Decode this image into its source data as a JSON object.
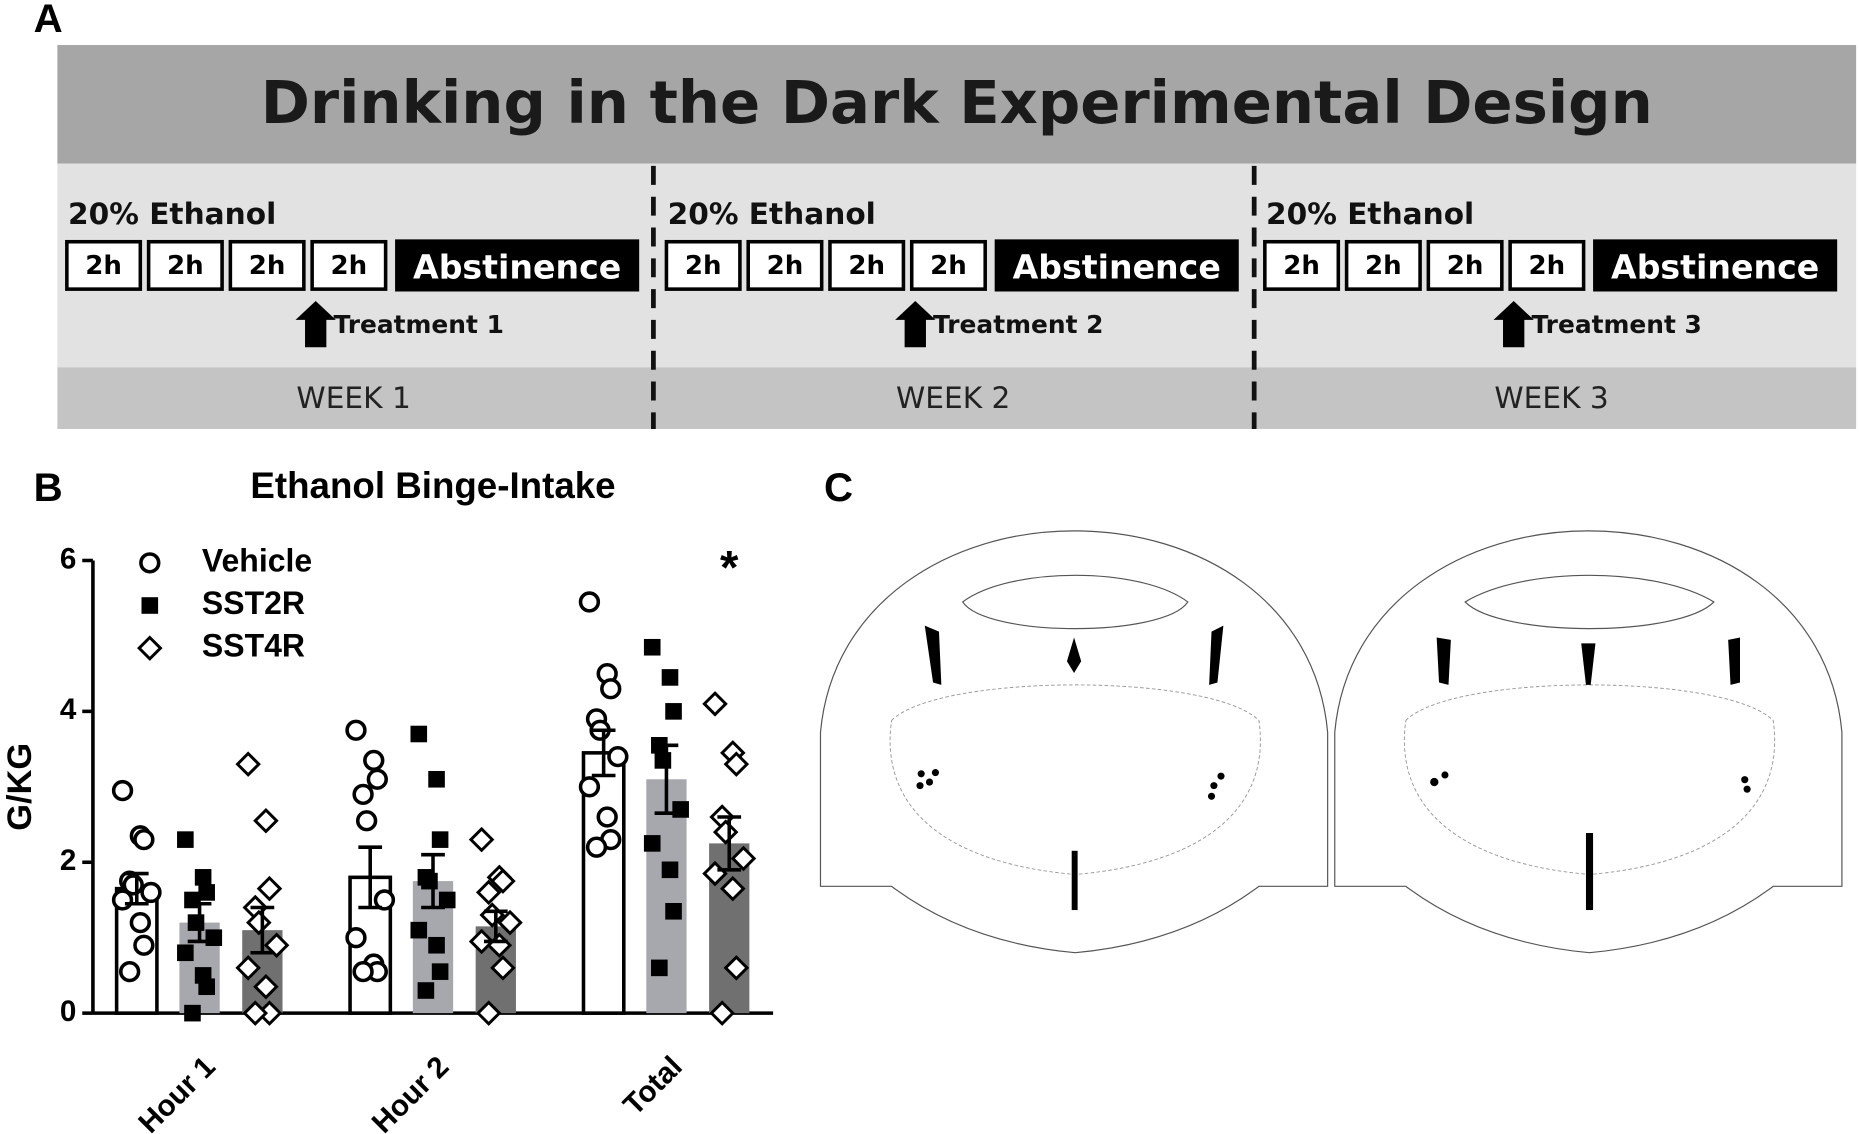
{
  "panel_labels": [
    "A",
    "B",
    "C"
  ],
  "design": {
    "title": "Drinking in the Dark Experimental Design",
    "weeks": [
      {
        "ethanol": "20% Ethanol",
        "sessions": [
          "2h",
          "2h",
          "2h",
          "2h"
        ],
        "abstinence": "Abstinence",
        "treatment": "Treatment 1",
        "week": "WEEK 1"
      },
      {
        "ethanol": "20% Ethanol",
        "sessions": [
          "2h",
          "2h",
          "2h",
          "2h"
        ],
        "abstinence": "Abstinence",
        "treatment": "Treatment 2",
        "week": "WEEK 2"
      },
      {
        "ethanol": "20% Ethanol",
        "sessions": [
          "2h",
          "2h",
          "2h",
          "2h"
        ],
        "abstinence": "Abstinence",
        "treatment": "Treatment 3",
        "week": "WEEK 3"
      }
    ]
  },
  "chart_data": {
    "type": "bar",
    "title": "Ethanol Binge-Intake",
    "y_label": "G/KG",
    "categories": [
      "Hour 1",
      "Hour 2",
      "Total"
    ],
    "ylim": [
      0,
      6
    ],
    "yticks": [
      0,
      2,
      4,
      6
    ],
    "annotation": "*",
    "series": [
      {
        "name": "Vehicle",
        "color": "#ffffff",
        "marker": "circle",
        "values": [
          1.65,
          1.8,
          3.45
        ],
        "errors": [
          0.2,
          0.4,
          0.3
        ],
        "points": [
          [
            2.95,
            2.35,
            2.3,
            1.75,
            1.7,
            1.6,
            1.5,
            1.2,
            0.9,
            0.55
          ],
          [
            3.75,
            3.35,
            3.1,
            2.9,
            2.55,
            1.5,
            1.0,
            0.65,
            0.55,
            0.55
          ],
          [
            5.45,
            4.5,
            4.3,
            3.9,
            3.75,
            3.4,
            3.0,
            2.6,
            2.3,
            2.2
          ]
        ]
      },
      {
        "name": "SST2R",
        "color": "#a7a7ae",
        "marker": "square",
        "values": [
          1.2,
          1.75,
          3.1
        ],
        "errors": [
          0.25,
          0.35,
          0.45
        ],
        "points": [
          [
            2.3,
            1.8,
            1.6,
            1.5,
            1.2,
            1.0,
            0.8,
            0.5,
            0.35,
            0.0
          ],
          [
            3.7,
            3.1,
            2.3,
            1.8,
            1.75,
            1.5,
            1.1,
            0.9,
            0.55,
            0.3
          ],
          [
            4.85,
            4.45,
            4.0,
            3.55,
            3.35,
            2.7,
            2.25,
            1.9,
            1.35,
            0.6
          ]
        ]
      },
      {
        "name": "SST4R",
        "color": "#707070",
        "marker": "diamond",
        "values": [
          1.1,
          1.15,
          2.25
        ],
        "errors": [
          0.3,
          0.2,
          0.35
        ],
        "points": [
          [
            3.3,
            2.55,
            1.65,
            1.4,
            1.2,
            0.9,
            0.6,
            0.35,
            0.0,
            0.0
          ],
          [
            2.3,
            1.8,
            1.75,
            1.6,
            1.3,
            1.2,
            0.95,
            0.9,
            0.6,
            0.0
          ],
          [
            4.1,
            3.45,
            3.3,
            2.6,
            2.4,
            2.05,
            1.85,
            1.65,
            0.6,
            0.0
          ]
        ]
      }
    ]
  }
}
